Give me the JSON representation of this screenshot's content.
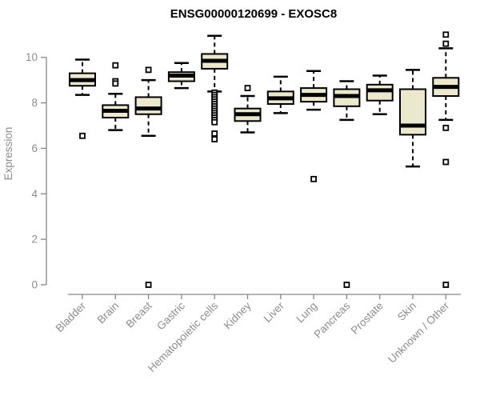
{
  "chart_data": {
    "type": "boxplot",
    "title": "ENSG00000120699 - EXOSC8",
    "ylabel": "Expression",
    "xlabel": "",
    "ylim": [
      0,
      11.2
    ],
    "yticks": [
      0,
      2,
      4,
      6,
      8,
      10
    ],
    "grid": false,
    "legend": "none",
    "categories": [
      "Bladder",
      "Brain",
      "Breast",
      "Gastric",
      "Hematopoietic cells",
      "Kidney",
      "Liver",
      "Lung",
      "Pancreas",
      "Prostate",
      "Skin",
      "Unknown / Other"
    ],
    "series": [
      {
        "category": "Bladder",
        "whisker_low": 8.35,
        "q1": 8.75,
        "median": 9.0,
        "q3": 9.3,
        "whisker_high": 9.9,
        "outliers": [
          6.55
        ]
      },
      {
        "category": "Brain",
        "whisker_low": 6.8,
        "q1": 7.35,
        "median": 7.65,
        "q3": 7.9,
        "whisker_high": 8.4,
        "outliers": [
          9.65,
          8.95,
          8.85
        ]
      },
      {
        "category": "Breast",
        "whisker_low": 6.55,
        "q1": 7.5,
        "median": 7.75,
        "q3": 8.25,
        "whisker_high": 9.0,
        "outliers": [
          9.45,
          0
        ]
      },
      {
        "category": "Gastric",
        "whisker_low": 8.65,
        "q1": 8.95,
        "median": 9.2,
        "q3": 9.35,
        "whisker_high": 9.75,
        "outliers": []
      },
      {
        "category": "Hematopoietic cells",
        "whisker_low": 8.5,
        "q1": 9.5,
        "median": 9.85,
        "q3": 10.15,
        "whisker_high": 10.95,
        "outliers": [
          8.45,
          8.35,
          8.25,
          8.15,
          8.05,
          7.95,
          7.85,
          7.75,
          7.65,
          7.55,
          7.45,
          7.35,
          7.25,
          7.15,
          6.65,
          6.4
        ]
      },
      {
        "category": "Kidney",
        "whisker_low": 6.7,
        "q1": 7.2,
        "median": 7.5,
        "q3": 7.75,
        "whisker_high": 8.3,
        "outliers": [
          8.65
        ]
      },
      {
        "category": "Liver",
        "whisker_low": 7.55,
        "q1": 7.95,
        "median": 8.2,
        "q3": 8.5,
        "whisker_high": 9.15,
        "outliers": []
      },
      {
        "category": "Lung",
        "whisker_low": 7.7,
        "q1": 8.05,
        "median": 8.35,
        "q3": 8.65,
        "whisker_high": 9.4,
        "outliers": [
          4.65
        ]
      },
      {
        "category": "Pancreas",
        "whisker_low": 7.25,
        "q1": 7.85,
        "median": 8.3,
        "q3": 8.6,
        "whisker_high": 8.95,
        "outliers": [
          0
        ]
      },
      {
        "category": "Prostate",
        "whisker_low": 7.5,
        "q1": 8.1,
        "median": 8.55,
        "q3": 8.8,
        "whisker_high": 9.2,
        "outliers": []
      },
      {
        "category": "Skin",
        "whisker_low": 5.2,
        "q1": 6.6,
        "median": 7.0,
        "q3": 8.6,
        "whisker_high": 9.45,
        "outliers": []
      },
      {
        "category": "Unknown / Other",
        "whisker_low": 7.25,
        "q1": 8.3,
        "median": 8.7,
        "q3": 9.1,
        "whisker_high": 10.4,
        "outliers": [
          11.0,
          10.6,
          6.9,
          5.4,
          0
        ]
      }
    ],
    "colors": {
      "box_fill": "#ECE8CD",
      "box_border": "#000000",
      "median": "#000000",
      "axis": "#868686",
      "tick_label": "#8c8c8c",
      "title": "#000000",
      "background": "#ffffff"
    }
  }
}
